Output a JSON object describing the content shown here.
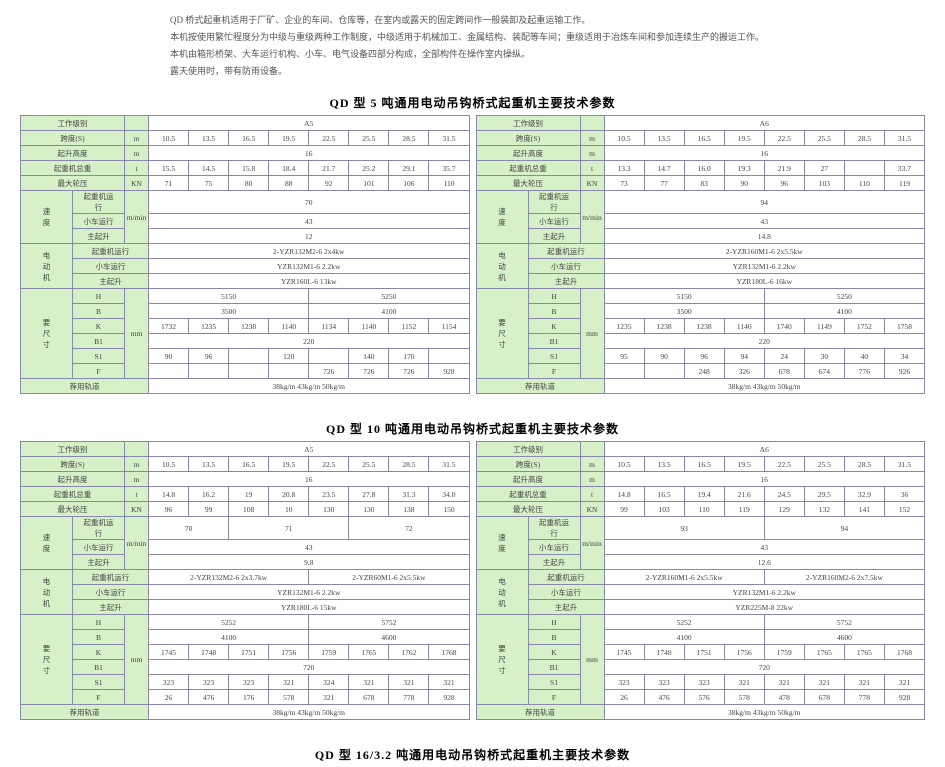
{
  "intro": {
    "l1": "QD 桥式起重机适用于厂矿、企业的车间、仓库等，在室内或露天的固定跨间作一般装卸及起重运输工作。",
    "l2": "本机按使用繁忙程度分为中级与重级两种工作制度，中级适用于机械加工、金属结构、装配等车间；重级适用于冶炼车间和参加连续生产的搬运工作。",
    "l3": "本机由箱形桥架、大车运行机构、小车、电气设备四部分构成，全部构件在操作室内操纵。",
    "l4": "露天使用时，带有防雨设备。"
  },
  "titles": {
    "t5": "QD 型 5 吨通用电动吊钩桥式起重机主要技术参数",
    "t10": "QD 型 10 吨通用电动吊钩桥式起重机主要技术参数",
    "t16": "QD 型 16/3.2 吨通用电动吊钩桥式起重机主要技术参数"
  },
  "labels": {
    "work": "工作级别",
    "span": "跨度(S)",
    "lift": "起升高度",
    "totalW": "起重机总重",
    "maxWheel": "最大轮压",
    "speed": "速\n度",
    "hoist": "起重机运\n行",
    "trolley": "小车运行",
    "mainH": "主起升",
    "motor": "电\n动\n机",
    "powerHoist": "起重机运行",
    "powerTrolley": "小车运行",
    "powerMain": "主起升",
    "dim": "要\n尺\n寸",
    "rail": "荐用轨道",
    "u_m": "m",
    "u_t": "t",
    "u_kn": "KN",
    "u_mmin": "m/min",
    "u_mm": "mm",
    "H": "H",
    "B": "B",
    "K": "K",
    "B1": "B1",
    "S1": "S1",
    "F": "F"
  },
  "t5a": {
    "class": "A5",
    "span": [
      "10.5",
      "13.5",
      "16.5",
      "19.5",
      "22.5",
      "25.5",
      "28.5",
      "31.5"
    ],
    "lift": "16",
    "totalW": [
      "15.5",
      "14.5",
      "15.8",
      "18.4",
      "21.7",
      "25.2",
      "29.1",
      "35.7"
    ],
    "wheel": [
      "71",
      "75",
      "80",
      "88",
      "92",
      "101",
      "106",
      "110"
    ],
    "spd_hoist": "70",
    "spd_trolley": "43",
    "spd_main": "12",
    "mot_hoist": "2-YZR132M2-6 2x4kw",
    "mot_trolley": "YZR132M1-6 2.2kw",
    "mot_main": "YZR160L-6 13kw",
    "H": [
      "5150",
      "5250"
    ],
    "B": [
      "3500",
      "4100"
    ],
    "K": [
      "1732",
      "1235",
      "1238",
      "1140",
      "1134",
      "1140",
      "1152",
      "1154"
    ],
    "B1": "220",
    "S1": [
      "90",
      "96",
      " ",
      "120",
      " ",
      "140",
      "170",
      " "
    ],
    "F": [
      " ",
      " ",
      " ",
      " ",
      "726",
      "726",
      "726",
      "928"
    ],
    "rail": "38kg/m 43kg/m 50kg/m"
  },
  "t5b": {
    "class": "A6",
    "span": [
      "10.5",
      "13.5",
      "16.5",
      "19.5",
      "22.5",
      "25.5",
      "28.5",
      "31.5"
    ],
    "lift": "16",
    "totalW": [
      "13.3",
      "14.7",
      "16.0",
      "19.3",
      "21.9",
      "27",
      " ",
      "33.7"
    ],
    "wheel": [
      "73",
      "77",
      "83",
      "90",
      "96",
      "103",
      "110",
      "119"
    ],
    "spd_hoist": "94",
    "spd_trolley": "43",
    "spd_main": "14.8",
    "mot_hoist": "2-YZR160M1-6 2x5.5kw",
    "mot_trolley": "YZR132M1-6 2.2kw",
    "mot_main": "YZR180L-6 16kw",
    "H": [
      "5150",
      "5250"
    ],
    "B": [
      "3500",
      "4100"
    ],
    "K": [
      "1235",
      "1238",
      "1238",
      "1146",
      "1740",
      "1149",
      "1752",
      "1758"
    ],
    "B1": "220",
    "S1": [
      "95",
      "90",
      "96",
      "94",
      "24",
      "30",
      "40",
      "34"
    ],
    "F": [
      "",
      "",
      "248",
      "326",
      "678",
      "674",
      "776",
      "926"
    ],
    "rail": "38kg/m 43kg/m 50kg/m"
  },
  "t10a": {
    "class": "A5",
    "span": [
      "10.5",
      "13.5",
      "16.5",
      "19.5",
      "22.5",
      "25.5",
      "28.5",
      "31.5"
    ],
    "lift": "16",
    "totalW": [
      "14.8",
      "16.2",
      "19",
      "20.8",
      "23.5",
      "27.8",
      "31.3",
      "34.0"
    ],
    "wheel": [
      "96",
      "99",
      "108",
      "10",
      "130",
      "130",
      "138",
      "150"
    ],
    "spd_hoist": [
      "70",
      "71",
      "72"
    ],
    "spd_trolley": "43",
    "spd_main": "9.8",
    "mot_hoist": [
      "2-YZR132M2-6 2x3.7kw",
      "2-YZR60M1-6 2x5.5kw"
    ],
    "mot_trolley": "YZR132M1-6 2.2kw",
    "mot_main": "YZR180L-6 15kw",
    "H": [
      "5252",
      "5752"
    ],
    "B": [
      "4100",
      "4600"
    ],
    "K": [
      "1745",
      "1748",
      "1751",
      "1756",
      "1759",
      "1765",
      "1762",
      "1768"
    ],
    "B1": "720",
    "S1": [
      "323",
      "323",
      "323",
      "321",
      "324",
      "321",
      "321",
      "321"
    ],
    "F": [
      "26",
      "476",
      "176",
      "578",
      "321",
      "678",
      "778",
      "928"
    ],
    "rail": "38kg/m 43kg/m 50kg/m"
  },
  "t10b": {
    "class": "A6",
    "span": [
      "10.5",
      "13.5",
      "16.5",
      "19.5",
      "22.5",
      "25.5",
      "28.5",
      "31.5"
    ],
    "lift": "16",
    "totalW": [
      "14.8",
      "16.5",
      "19.4",
      "21.6",
      "24.5",
      "29.5",
      "32.9",
      "36"
    ],
    "wheel": [
      "99",
      "103",
      "110",
      "119",
      "129",
      "132",
      "141",
      "152"
    ],
    "spd_hoist": [
      "93",
      "94"
    ],
    "spd_trolley": "43",
    "spd_main": "12.6",
    "mot_hoist": [
      "2-YZR160M1-6 2x5.5kw",
      "2-YZR160M2-6 2x7.5kw"
    ],
    "mot_trolley": "YZR132M1-6 2.2kw",
    "mot_main": "YZR225M-8 22kw",
    "H": [
      "5252",
      "5752"
    ],
    "B": [
      "4100",
      "4600"
    ],
    "K": [
      "1745",
      "1748",
      "1751",
      "1756",
      "1759",
      "1765",
      "1765",
      "1768"
    ],
    "B1": "720",
    "S1": [
      "323",
      "323",
      "323",
      "321",
      "321",
      "321",
      "321",
      "321"
    ],
    "F": [
      "26",
      "476",
      "576",
      "578",
      "478",
      "678",
      "778",
      "928"
    ],
    "rail": "38kg/m 43kg/m 50kg/m"
  }
}
